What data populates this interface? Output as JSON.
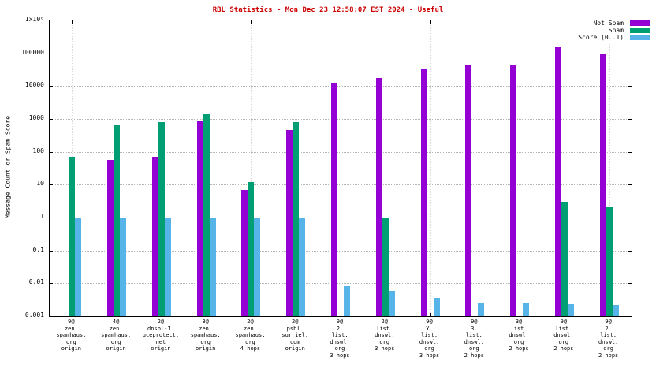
{
  "chart_data": {
    "type": "bar",
    "title": "RBL Statistics - Mon Dec 23 12:58:07 EST 2024 - Useful",
    "title_color": "#cc0000",
    "ylabel": "Message Count or Spam Score",
    "xlabel": "",
    "y_scale": "log",
    "ylim": [
      0.001,
      1000000
    ],
    "grid": true,
    "legend_position": "top-right",
    "y_ticks": [
      {
        "value": 1000000,
        "label": "1x10⁶"
      },
      {
        "value": 100000,
        "label": "100000"
      },
      {
        "value": 10000,
        "label": "10000"
      },
      {
        "value": 1000,
        "label": "1000"
      },
      {
        "value": 100,
        "label": "100"
      },
      {
        "value": 10,
        "label": "10"
      },
      {
        "value": 1,
        "label": "1"
      },
      {
        "value": 0.1,
        "label": "0.1"
      },
      {
        "value": 0.01,
        "label": "0.01"
      },
      {
        "value": 0.001,
        "label": "0.001"
      }
    ],
    "categories": [
      "9@\nzen.\nspamhaus.\norg\norigin",
      "4@\nzen.\nspamhaus.\norg\norigin",
      "2@\ndnsbl-1.\nuceprotect.\nnet\norigin",
      "3@\nzen.\nspamhaus.\norg\norigin",
      "2@\nzen.\nspamhaus.\norg\n4 hops",
      "2@\npsbl.\nsurriel.\ncom\norigin",
      "9@\n2.\nlist.\ndnswl.\norg\n3 hops",
      "2@\nlist.\ndnswl.\norg\n3 hops",
      "9@\nY.\nlist.\ndnswl.\norg\n3 hops",
      "9@\n3.\nlist.\ndnswl.\norg\n2 hops",
      "3@\nlist.\ndnswl.\norg\n2 hops",
      "9@\nlist.\ndnswl.\norg\n2 hops",
      "9@\n2.\nlist.\ndnswl.\norg\n2 hops"
    ],
    "series": [
      {
        "name": "Not Spam",
        "color": "#9400d3",
        "values": [
          null,
          55,
          70,
          850,
          7,
          450,
          13000,
          18000,
          32000,
          45000,
          45000,
          150000,
          100000
        ]
      },
      {
        "name": "Spam",
        "color": "#009e73",
        "values": [
          70,
          650,
          800,
          1500,
          12,
          800,
          null,
          1,
          null,
          null,
          null,
          3,
          2
        ]
      },
      {
        "name": "Score (0..1)",
        "color": "#56b4e9",
        "values": [
          1,
          1,
          1,
          1,
          1,
          1,
          0.008,
          0.006,
          0.0035,
          0.0026,
          0.0026,
          0.0023,
          0.0022
        ]
      }
    ]
  }
}
